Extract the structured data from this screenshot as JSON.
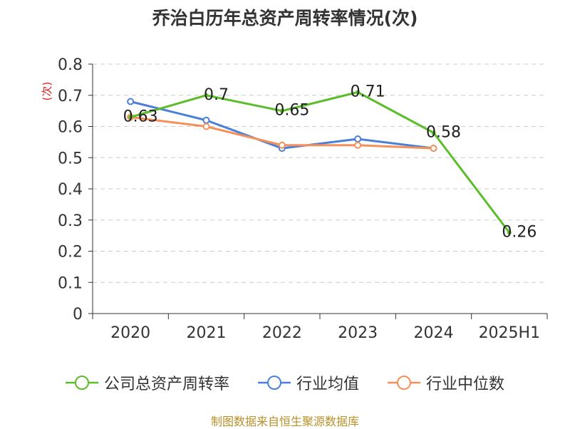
{
  "chart_data": {
    "type": "line",
    "title": "乔治白历年总资产周转率情况(次)",
    "ylabel": "(次)",
    "xlabel": "",
    "categories": [
      "2020",
      "2021",
      "2022",
      "2023",
      "2024",
      "2025H1"
    ],
    "yticks": [
      "0",
      "0.1",
      "0.2",
      "0.3",
      "0.4",
      "0.5",
      "0.6",
      "0.7",
      "0.8"
    ],
    "ylim": [
      0,
      0.8
    ],
    "grid": true,
    "legend_position": "bottom",
    "series": [
      {
        "name": "公司总资产周转率",
        "color": "#5cbd2b",
        "values": [
          0.63,
          0.7,
          0.65,
          0.71,
          0.58,
          0.26
        ],
        "labels": [
          "0.63",
          "0.7",
          "0.65",
          "0.71",
          "0.58",
          "0.26"
        ]
      },
      {
        "name": "行业均值",
        "color": "#4a7fd9",
        "values": [
          0.68,
          0.62,
          0.53,
          0.56,
          0.53,
          null
        ]
      },
      {
        "name": "行业中位数",
        "color": "#f5905a",
        "values": [
          0.63,
          0.6,
          0.54,
          0.54,
          0.53,
          null
        ]
      }
    ]
  },
  "source_note": "制图数据来自恒生聚源数据库"
}
